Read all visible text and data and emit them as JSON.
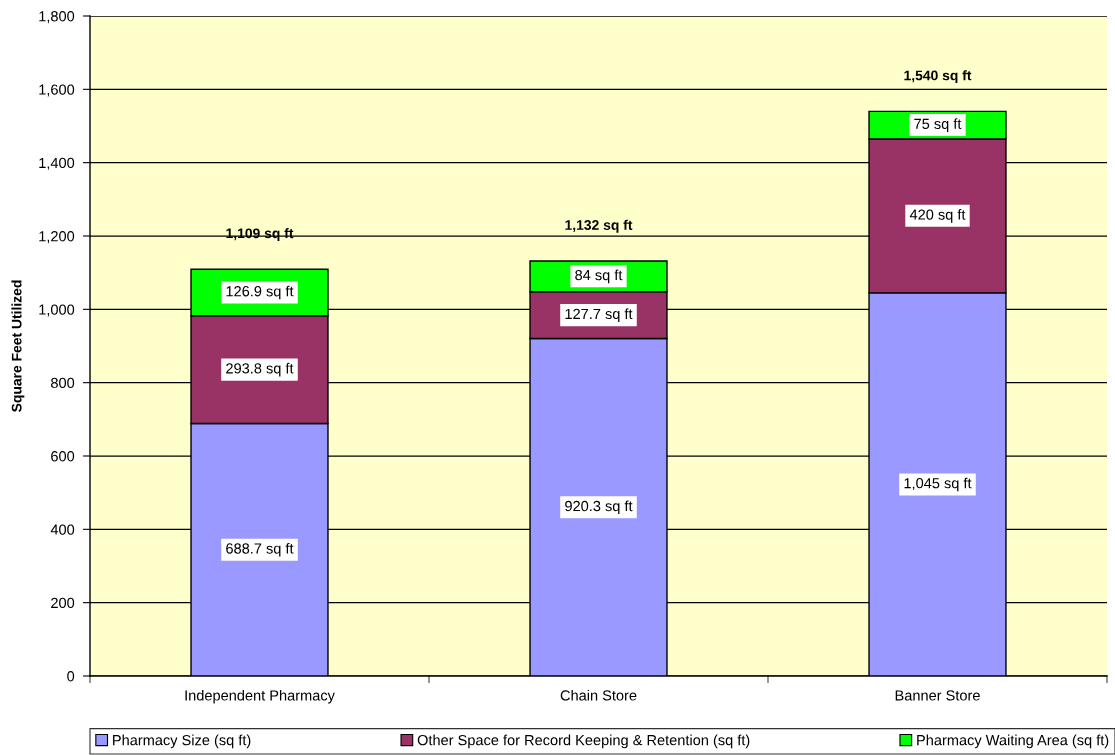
{
  "chart_data": {
    "type": "bar",
    "stacked": true,
    "categories": [
      "Independent Pharmacy",
      "Chain Store",
      "Banner Store"
    ],
    "ylabel": "Square Feet Utilized",
    "series": [
      {
        "name": "Pharmacy Size (sq ft)",
        "color": "#9999ff",
        "values": [
          688.7,
          920.3,
          1045
        ],
        "value_labels": [
          "688.7 sq ft",
          "920.3 sq ft",
          "1,045 sq ft"
        ]
      },
      {
        "name": "Other Space for Record Keeping & Retention (sq ft)",
        "color": "#993366",
        "values": [
          293.8,
          127.7,
          420
        ],
        "value_labels": [
          "293.8 sq ft",
          "127.7 sq ft",
          "420 sq ft"
        ]
      },
      {
        "name": "Pharmacy Waiting Area (sq ft)",
        "color": "#00ff00",
        "values": [
          126.9,
          84,
          75
        ],
        "value_labels": [
          "126.9 sq ft",
          "84 sq ft",
          "75 sq ft"
        ]
      }
    ],
    "totals": [
      "1,109 sq ft",
      "1,132 sq ft",
      "1,540 sq ft"
    ],
    "ylim": [
      0,
      1800
    ],
    "yticks": [
      0,
      200,
      400,
      600,
      800,
      {
        "value": 1000,
        "label": "1,000"
      },
      {
        "value": 1200,
        "label": "1,200"
      },
      {
        "value": 1400,
        "label": "1,400"
      },
      {
        "value": 1600,
        "label": "1,600"
      },
      {
        "value": 1800,
        "label": "1,800"
      }
    ],
    "grid": "y",
    "legend": "bottom"
  }
}
